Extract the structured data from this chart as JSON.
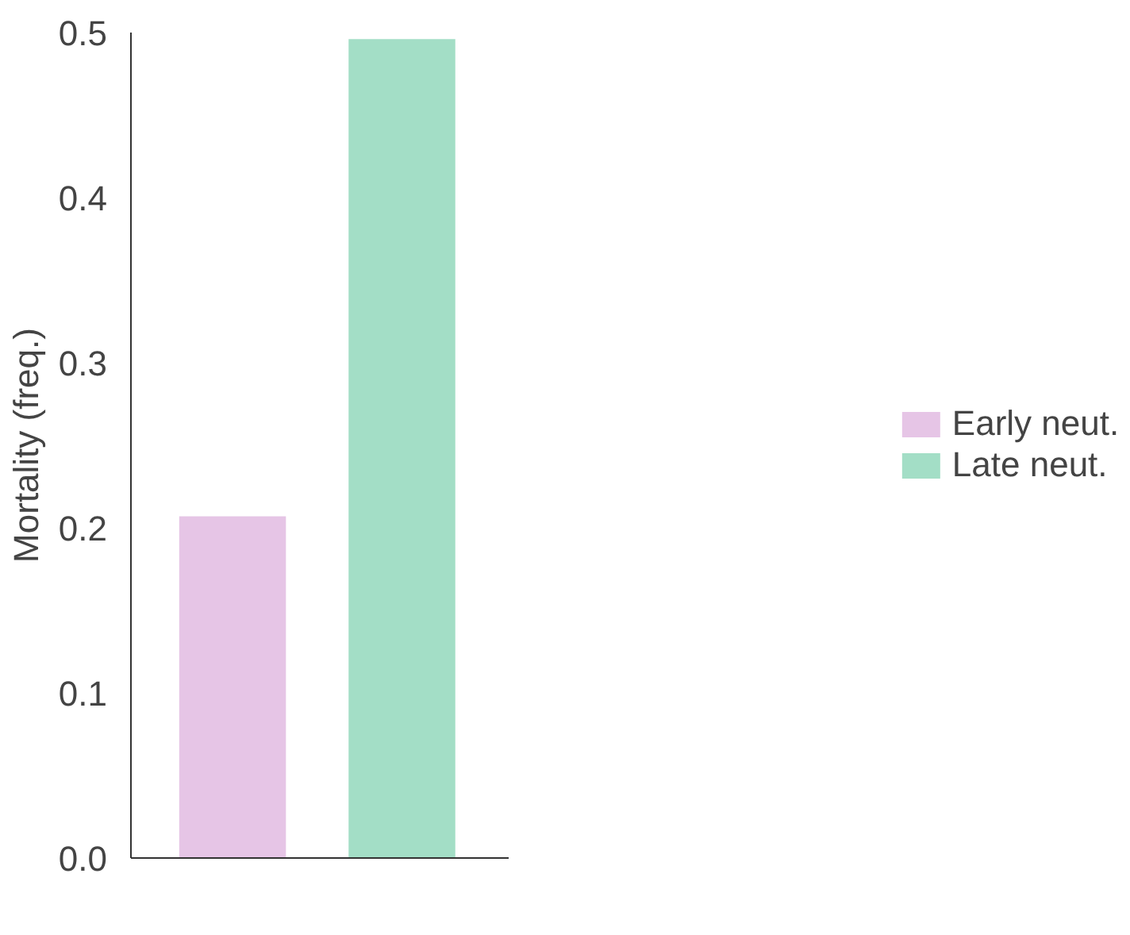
{
  "chart_data": {
    "type": "bar",
    "ylabel": "Mortality (freq.)",
    "categories": [
      null,
      null
    ],
    "series": [
      {
        "name": "Early neut.",
        "color": "#e6c5e6",
        "values": [
          0.207,
          null
        ]
      },
      {
        "name": "Late neut.",
        "color": "#a3dec6",
        "values": [
          null,
          0.496
        ]
      }
    ],
    "ylim": [
      0,
      0.5
    ],
    "yticks": [
      {
        "value": 0,
        "label": "0.0"
      },
      0.1,
      0.2,
      0.3,
      0.4,
      0.5
    ],
    "tick_labels": "y",
    "grid": false,
    "legend": "right"
  }
}
